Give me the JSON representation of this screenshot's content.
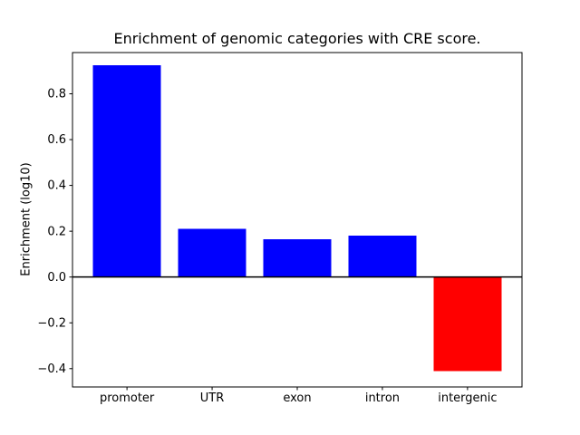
{
  "figure": {
    "title": "Enrichment of genomic categories with CRE score.",
    "ylabel": "Enrichment (log10)"
  },
  "chart_data": {
    "type": "bar",
    "title": "Enrichment of genomic categories with CRE score.",
    "xlabel": "",
    "ylabel": "Enrichment (log10)",
    "categories": [
      "promoter",
      "UTR",
      "exon",
      "intron",
      "intergenic"
    ],
    "values": [
      0.925,
      0.21,
      0.165,
      0.18,
      -0.41
    ],
    "bar_colors": [
      "#0000ff",
      "#0000ff",
      "#0000ff",
      "#0000ff",
      "#ff0000"
    ],
    "positive_color": "#0000ff",
    "negative_color": "#ff0000",
    "ylim": [
      -0.48,
      0.98
    ],
    "yticks": [
      -0.4,
      -0.2,
      0.0,
      0.2,
      0.4,
      0.6,
      0.8
    ],
    "grid": false,
    "legend": null,
    "zero_line": true,
    "background_color": "#ffffff",
    "axis_color": "#000000"
  }
}
